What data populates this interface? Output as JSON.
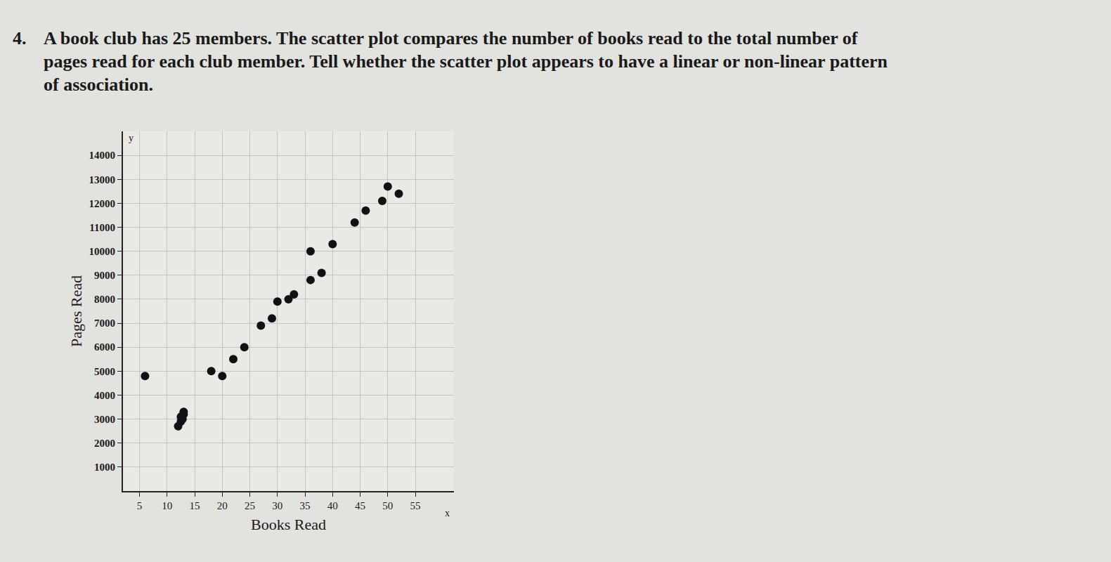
{
  "question": {
    "number": "4.",
    "text_lines": [
      "A book club has 25 members. The scatter plot compares the number of books read to the total number of",
      "pages read for each club member. Tell whether the scatter plot appears to have a linear or non-linear pattern",
      "of association."
    ]
  },
  "chart_data": {
    "type": "scatter",
    "x_label": "Books Read",
    "y_label": "Pages Read",
    "axis_symbols": {
      "x": "x",
      "y": "y"
    },
    "x": [
      6,
      12,
      12.5,
      12.5,
      13,
      13,
      18,
      20,
      22,
      24,
      27,
      29,
      30,
      32,
      33,
      36,
      38,
      36,
      40,
      44,
      46,
      49,
      50,
      52,
      12.8
    ],
    "values": [
      4800,
      2700,
      2900,
      3100,
      3300,
      3200,
      5000,
      4800,
      5500,
      6000,
      6900,
      7200,
      7900,
      8000,
      8200,
      8800,
      9100,
      10000,
      10300,
      11200,
      11700,
      12100,
      12700,
      12400,
      3000
    ],
    "xlim": [
      2,
      62
    ],
    "xticks": [
      5,
      10,
      15,
      20,
      25,
      30,
      35,
      40,
      45,
      50,
      55
    ],
    "ylim": [
      0,
      15000
    ],
    "yticks": [
      1000,
      2000,
      3000,
      4000,
      5000,
      6000,
      7000,
      8000,
      9000,
      10000,
      11000,
      12000,
      13000,
      14000
    ],
    "grid": true,
    "color": "#111111",
    "marker": "circle"
  }
}
